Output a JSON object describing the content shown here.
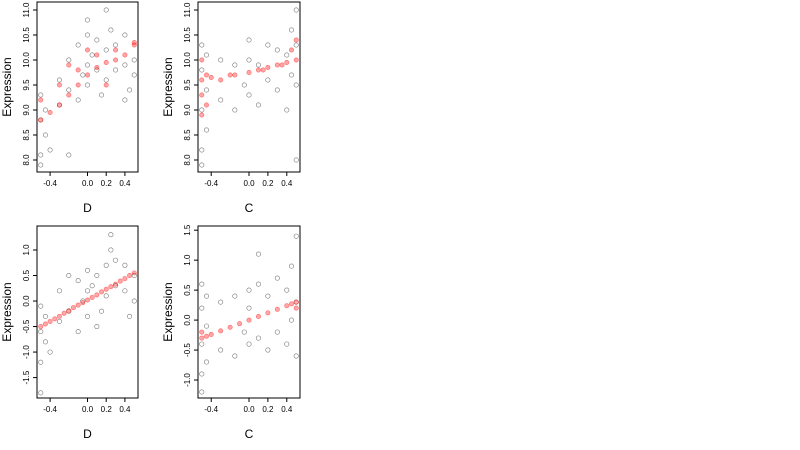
{
  "chart_data": [
    {
      "type": "scatter",
      "xlabel": "D",
      "ylabel": "Expression",
      "xlim": [
        -0.54,
        0.54
      ],
      "ylim": [
        7.76,
        11.16
      ],
      "xticks": [
        -0.4,
        {
          "value": 0,
          "label": "0.0"
        },
        0.2,
        0.4
      ],
      "yticks": [
        {
          "value": 8,
          "label": "8.0"
        },
        8.5,
        {
          "value": 9,
          "label": "9.0"
        },
        9.5,
        {
          "value": 10,
          "label": "10.0"
        },
        10.5,
        {
          "value": 11,
          "label": "11.0"
        }
      ],
      "series": [
        {
          "color": "#555555",
          "x": [
            -0.5,
            -0.5,
            -0.5,
            -0.45,
            -0.45,
            -0.4,
            -0.3,
            -0.3,
            -0.2,
            -0.2,
            -0.1,
            -0.1,
            -0.05,
            0,
            0,
            0,
            0.05,
            0.1,
            0.1,
            0.15,
            0.2,
            0.2,
            0.25,
            0.3,
            0.3,
            0.4,
            0.4,
            0.45,
            0.5,
            0.5,
            -0.5,
            -0.2,
            0,
            0.2,
            0.4
          ],
          "values": [
            8.1,
            8.8,
            9.3,
            8.5,
            9.0,
            8.2,
            9.1,
            9.6,
            9.4,
            10.0,
            9.2,
            10.3,
            9.7,
            9.9,
            10.5,
            9.5,
            10.1,
            9.8,
            10.4,
            9.3,
            10.2,
            9.6,
            10.6,
            9.8,
            10.3,
            9.9,
            10.5,
            9.4,
            10.0,
            9.7,
            7.9,
            8.1,
            10.8,
            11.0,
            9.2
          ]
        },
        {
          "color": "#ff0000",
          "x": [
            -0.5,
            -0.4,
            -0.3,
            -0.2,
            -0.1,
            0,
            0.1,
            0.2,
            0.3,
            0.4,
            0.5,
            -0.5,
            -0.3,
            -0.1,
            0.1,
            0.3,
            0.5,
            -0.2,
            0,
            0.2
          ],
          "values": [
            8.8,
            8.95,
            9.1,
            9.3,
            9.5,
            9.7,
            9.85,
            9.95,
            10.0,
            10.1,
            10.3,
            9.2,
            9.5,
            9.8,
            10.1,
            10.2,
            10.35,
            9.9,
            10.2,
            9.5
          ]
        }
      ]
    },
    {
      "type": "scatter",
      "xlabel": "C",
      "ylabel": "Expression",
      "xlim": [
        -0.54,
        0.54
      ],
      "ylim": [
        7.76,
        11.16
      ],
      "xticks": [
        -0.4,
        {
          "value": 0,
          "label": "0.0"
        },
        0.2,
        0.4
      ],
      "yticks": [
        {
          "value": 8,
          "label": "8.0"
        },
        8.5,
        {
          "value": 9,
          "label": "9.0"
        },
        9.5,
        {
          "value": 10,
          "label": "10.0"
        },
        10.5,
        {
          "value": 11,
          "label": "11.0"
        }
      ],
      "series": [
        {
          "color": "#555555",
          "x": [
            -0.5,
            -0.5,
            -0.5,
            -0.5,
            -0.45,
            -0.45,
            -0.45,
            -0.3,
            -0.3,
            -0.15,
            -0.15,
            -0.05,
            0,
            0,
            0,
            0.1,
            0.1,
            0.2,
            0.2,
            0.3,
            0.3,
            0.4,
            0.4,
            0.45,
            0.45,
            0.5,
            0.5,
            0.5,
            -0.5,
            0.5
          ],
          "values": [
            8.2,
            9.0,
            9.8,
            10.3,
            8.6,
            9.4,
            10.1,
            9.2,
            10.0,
            9.0,
            9.9,
            9.5,
            9.3,
            10.0,
            10.4,
            9.1,
            9.9,
            9.6,
            10.3,
            9.4,
            10.2,
            9.0,
            10.1,
            9.7,
            10.6,
            9.5,
            10.3,
            11.0,
            7.9,
            8.0
          ]
        },
        {
          "color": "#ff0000",
          "x": [
            -0.5,
            -0.5,
            -0.5,
            -0.5,
            -0.45,
            -0.45,
            -0.3,
            -0.15,
            0,
            0.1,
            0.2,
            0.3,
            0.4,
            0.45,
            0.5,
            0.5,
            -0.4,
            -0.2,
            0.15,
            0.35
          ],
          "values": [
            8.9,
            9.3,
            9.6,
            10.0,
            9.1,
            9.7,
            9.6,
            9.7,
            9.75,
            9.8,
            9.85,
            9.9,
            9.95,
            10.2,
            10.0,
            10.4,
            9.65,
            9.7,
            9.8,
            9.9
          ]
        }
      ]
    },
    {
      "type": "scatter",
      "xlabel": "D",
      "ylabel": "Expression",
      "xlim": [
        -0.54,
        0.54
      ],
      "ylim": [
        -1.9,
        1.47
      ],
      "xticks": [
        -0.4,
        {
          "value": 0,
          "label": "0.0"
        },
        0.2,
        0.4
      ],
      "yticks": [
        -1.5,
        {
          "value": -1,
          "label": "-1.0"
        },
        -0.5,
        {
          "value": 0,
          "label": "0.0"
        },
        0.5,
        {
          "value": 1,
          "label": "1.0"
        }
      ],
      "series": [
        {
          "color": "#555555",
          "x": [
            -0.5,
            -0.5,
            -0.5,
            -0.45,
            -0.45,
            -0.4,
            -0.3,
            -0.3,
            -0.2,
            -0.2,
            -0.1,
            -0.1,
            -0.05,
            0,
            0,
            0,
            0.05,
            0.1,
            0.1,
            0.15,
            0.2,
            0.2,
            0.25,
            0.3,
            0.3,
            0.4,
            0.4,
            0.45,
            0.5,
            0.5,
            -0.5,
            0.25
          ],
          "values": [
            -1.2,
            -0.6,
            -0.1,
            -0.8,
            -0.3,
            -1.0,
            -0.4,
            0.2,
            -0.2,
            0.5,
            -0.6,
            0.4,
            0.0,
            -0.3,
            0.6,
            0.2,
            0.3,
            -0.5,
            0.5,
            -0.2,
            0.7,
            0.1,
            1.0,
            0.3,
            0.8,
            0.2,
            0.7,
            -0.3,
            0.5,
            0.0,
            -1.8,
            1.3
          ]
        },
        {
          "color": "#ff0000",
          "x": [
            -0.5,
            -0.45,
            -0.4,
            -0.35,
            -0.3,
            -0.25,
            -0.2,
            -0.15,
            -0.1,
            -0.05,
            0,
            0.05,
            0.1,
            0.15,
            0.2,
            0.25,
            0.3,
            0.35,
            0.4,
            0.45,
            0.5
          ],
          "values": [
            -0.5,
            -0.45,
            -0.4,
            -0.35,
            -0.3,
            -0.24,
            -0.19,
            -0.13,
            -0.08,
            -0.03,
            0.02,
            0.07,
            0.12,
            0.18,
            0.23,
            0.28,
            0.33,
            0.39,
            0.44,
            0.5,
            0.55
          ]
        }
      ]
    },
    {
      "type": "scatter",
      "xlabel": "C",
      "ylabel": "Expression",
      "xlim": [
        -0.54,
        0.54
      ],
      "ylim": [
        -1.3,
        1.57
      ],
      "xticks": [
        -0.4,
        {
          "value": 0,
          "label": "0.0"
        },
        0.2,
        0.4
      ],
      "yticks": [
        {
          "value": -1,
          "label": "-1.0"
        },
        -0.5,
        {
          "value": 0,
          "label": "0.0"
        },
        0.5,
        {
          "value": 1,
          "label": "1.0"
        },
        1.5
      ],
      "series": [
        {
          "color": "#555555",
          "x": [
            -0.5,
            -0.5,
            -0.5,
            -0.5,
            -0.45,
            -0.45,
            -0.45,
            -0.3,
            -0.3,
            -0.15,
            -0.15,
            -0.05,
            0,
            0,
            0,
            0.1,
            0.1,
            0.2,
            0.2,
            0.3,
            0.3,
            0.4,
            0.4,
            0.45,
            0.45,
            0.5,
            0.5,
            0.5,
            -0.5,
            0.1
          ],
          "values": [
            -0.9,
            -0.4,
            0.2,
            0.6,
            -0.7,
            -0.1,
            0.4,
            -0.5,
            0.3,
            -0.6,
            0.4,
            -0.2,
            -0.4,
            0.2,
            0.5,
            -0.3,
            0.6,
            -0.5,
            0.4,
            -0.2,
            0.7,
            -0.4,
            0.5,
            0.0,
            0.9,
            -0.6,
            0.3,
            1.4,
            -1.2,
            1.1
          ]
        },
        {
          "color": "#ff0000",
          "x": [
            -0.5,
            -0.45,
            -0.4,
            -0.3,
            -0.2,
            -0.1,
            0,
            0.1,
            0.2,
            0.3,
            0.4,
            0.45,
            0.5,
            -0.5,
            0.5
          ],
          "values": [
            -0.3,
            -0.27,
            -0.24,
            -0.18,
            -0.12,
            -0.06,
            0.0,
            0.06,
            0.12,
            0.18,
            0.24,
            0.27,
            0.3,
            -0.2,
            0.2
          ]
        }
      ]
    }
  ]
}
